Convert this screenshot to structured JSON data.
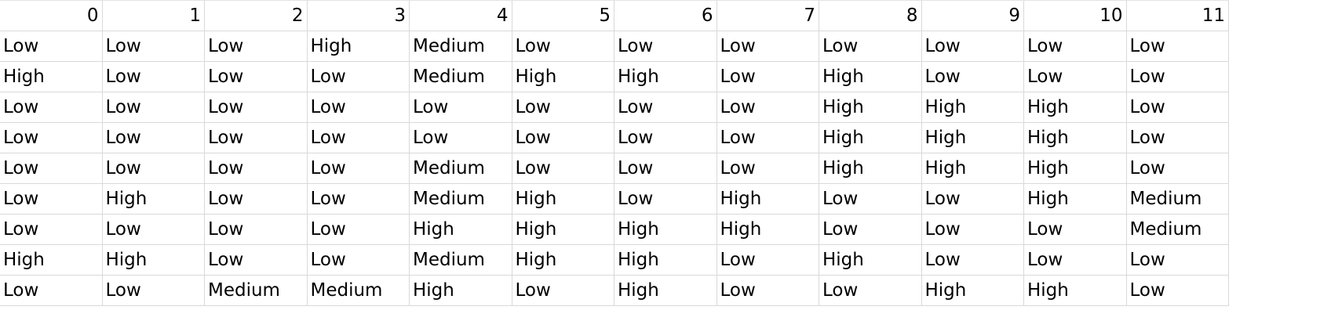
{
  "columns": [
    "0",
    "1",
    "2",
    "3",
    "4",
    "5",
    "6",
    "7",
    "8",
    "9",
    "10",
    "11"
  ],
  "rows": [
    [
      "Low",
      "Low",
      "Low",
      "High",
      "Medium",
      "Low",
      "Low",
      "Low",
      "Low",
      "Low",
      "Low",
      "Low"
    ],
    [
      "High",
      "Low",
      "Low",
      "Low",
      "Medium",
      "High",
      "High",
      "Low",
      "High",
      "Low",
      "Low",
      "Low"
    ],
    [
      "Low",
      "Low",
      "Low",
      "Low",
      "Low",
      "Low",
      "Low",
      "Low",
      "High",
      "High",
      "High",
      "Low"
    ],
    [
      "Low",
      "Low",
      "Low",
      "Low",
      "Low",
      "Low",
      "Low",
      "Low",
      "High",
      "High",
      "High",
      "Low"
    ],
    [
      "Low",
      "Low",
      "Low",
      "Low",
      "Medium",
      "Low",
      "Low",
      "Low",
      "High",
      "High",
      "High",
      "Low"
    ],
    [
      "Low",
      "High",
      "Low",
      "Low",
      "Medium",
      "High",
      "Low",
      "High",
      "Low",
      "Low",
      "High",
      "Medium"
    ],
    [
      "Low",
      "Low",
      "Low",
      "Low",
      "High",
      "High",
      "High",
      "High",
      "Low",
      "Low",
      "Low",
      "Medium"
    ],
    [
      "High",
      "High",
      "Low",
      "Low",
      "Medium",
      "High",
      "High",
      "Low",
      "High",
      "Low",
      "Low",
      "Low"
    ],
    [
      "Low",
      "Low",
      "Medium",
      "Medium",
      "High",
      "Low",
      "High",
      "Low",
      "Low",
      "High",
      "High",
      "Low"
    ]
  ]
}
